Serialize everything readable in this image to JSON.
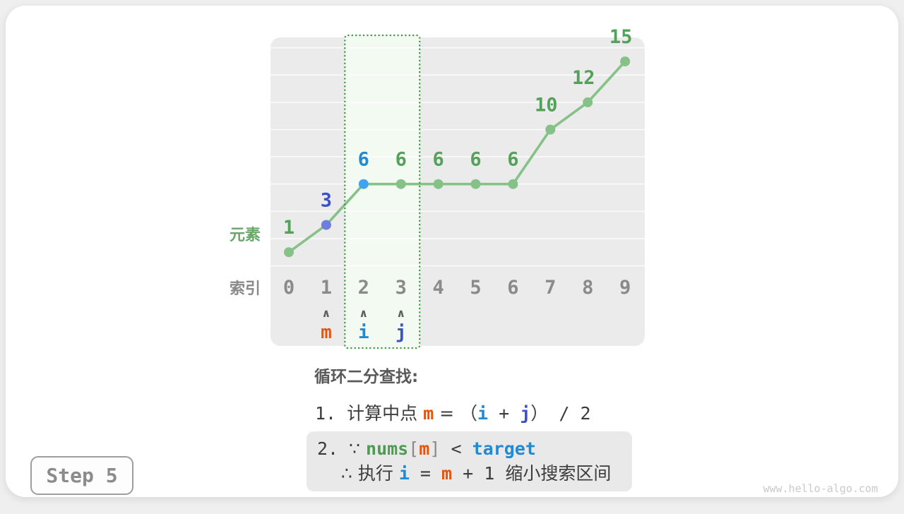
{
  "colors": {
    "line_green": "#86C288",
    "label_green": "#55A15B",
    "axis_green": "#68A768",
    "code_green": "#4D9B50",
    "blue_i": "#2289D3",
    "indigo_j": "#3B50C9",
    "violet_point": "#6E7EDB",
    "lightblue_point": "#41A3EE",
    "orange_m": "#E8540E",
    "gray_label": "#8A8A8A",
    "arrow_gray": "#606060",
    "dark_text": "#3C3C3C",
    "heading_gray": "#595959",
    "panel_bg": "#EBEBEB",
    "grid_line": "#F7F7F7",
    "highlight_bg": "#F3FAF2",
    "highlight_border": "#3F9C3F",
    "note_box_bg": "#E9E9E9",
    "badge_border": "#9E9E9E",
    "badge_text": "#8B8B8B",
    "watermark_gray": "#C9C9C9"
  },
  "chart_data": {
    "type": "line",
    "title": "",
    "x": [
      0,
      1,
      2,
      3,
      4,
      5,
      6,
      7,
      8,
      9
    ],
    "values": [
      1,
      3,
      6,
      6,
      6,
      6,
      6,
      10,
      12,
      15
    ],
    "xlabel": "索引",
    "ylabel": "元素",
    "ylim": [
      0,
      16
    ],
    "grid": "horizontal gridlines every 2 units",
    "legend": "none",
    "point_colors": {
      "default": "line_green",
      "1": "violet_point",
      "2": "lightblue_point"
    },
    "label_colors": {
      "default": "label_green",
      "1": "indigo_j",
      "2": "blue_i"
    },
    "highlight_range": {
      "from_index": 2,
      "to_index": 3
    },
    "pointers": [
      {
        "name": "m",
        "index": 1,
        "color": "orange_m"
      },
      {
        "name": "i",
        "index": 2,
        "color": "blue_i"
      },
      {
        "name": "j",
        "index": 3,
        "color": "indigo_j"
      }
    ]
  },
  "caption": {
    "heading": "循环二分查找:",
    "line1": [
      {
        "t": "1. ",
        "m": 1,
        "n": "list-number"
      },
      {
        "t": "计算中点 ",
        "n": "text-cjk"
      },
      {
        "t": "m",
        "c": "orange_m",
        "b": 1,
        "m": 1,
        "n": "var-m"
      },
      {
        "t": " = （",
        "n": "operator"
      },
      {
        "t": "i",
        "c": "blue_i",
        "b": 1,
        "m": 1,
        "n": "var-i"
      },
      {
        "t": " + ",
        "m": 1,
        "n": "operator"
      },
      {
        "t": "j",
        "c": "indigo_j",
        "b": 1,
        "m": 1,
        "n": "var-j"
      },
      {
        "t": "）",
        "n": "operator"
      },
      {
        "t": " / 2",
        "m": 1,
        "n": "operator"
      }
    ],
    "box_line1": [
      {
        "t": "2. ",
        "m": 1,
        "n": "list-number"
      },
      {
        "t": "∵ ",
        "n": "because-symbol"
      },
      {
        "t": "nums",
        "c": "code_green",
        "b": 1,
        "m": 1,
        "n": "var-nums"
      },
      {
        "t": "[",
        "c": "gray_label",
        "m": 1,
        "n": "bracket"
      },
      {
        "t": "m",
        "c": "orange_m",
        "b": 1,
        "m": 1,
        "n": "var-m"
      },
      {
        "t": "]",
        "c": "gray_label",
        "m": 1,
        "n": "bracket"
      },
      {
        "t": " < ",
        "m": 1,
        "n": "operator"
      },
      {
        "t": "target",
        "c": "blue_i",
        "b": 1,
        "m": 1,
        "n": "var-target"
      }
    ],
    "box_line2": [
      {
        "t": "∴ 执行 ",
        "n": "therefore-text"
      },
      {
        "t": "i",
        "c": "blue_i",
        "b": 1,
        "m": 1,
        "n": "var-i"
      },
      {
        "t": " = ",
        "m": 1,
        "n": "operator"
      },
      {
        "t": "m",
        "c": "orange_m",
        "b": 1,
        "m": 1,
        "n": "var-m"
      },
      {
        "t": " + 1 ",
        "m": 1,
        "n": "operator"
      },
      {
        "t": "缩小搜索区间",
        "n": "text-cjk"
      }
    ]
  },
  "step_badge": {
    "label": "Step 5"
  },
  "watermark": "www.hello-algo.com"
}
